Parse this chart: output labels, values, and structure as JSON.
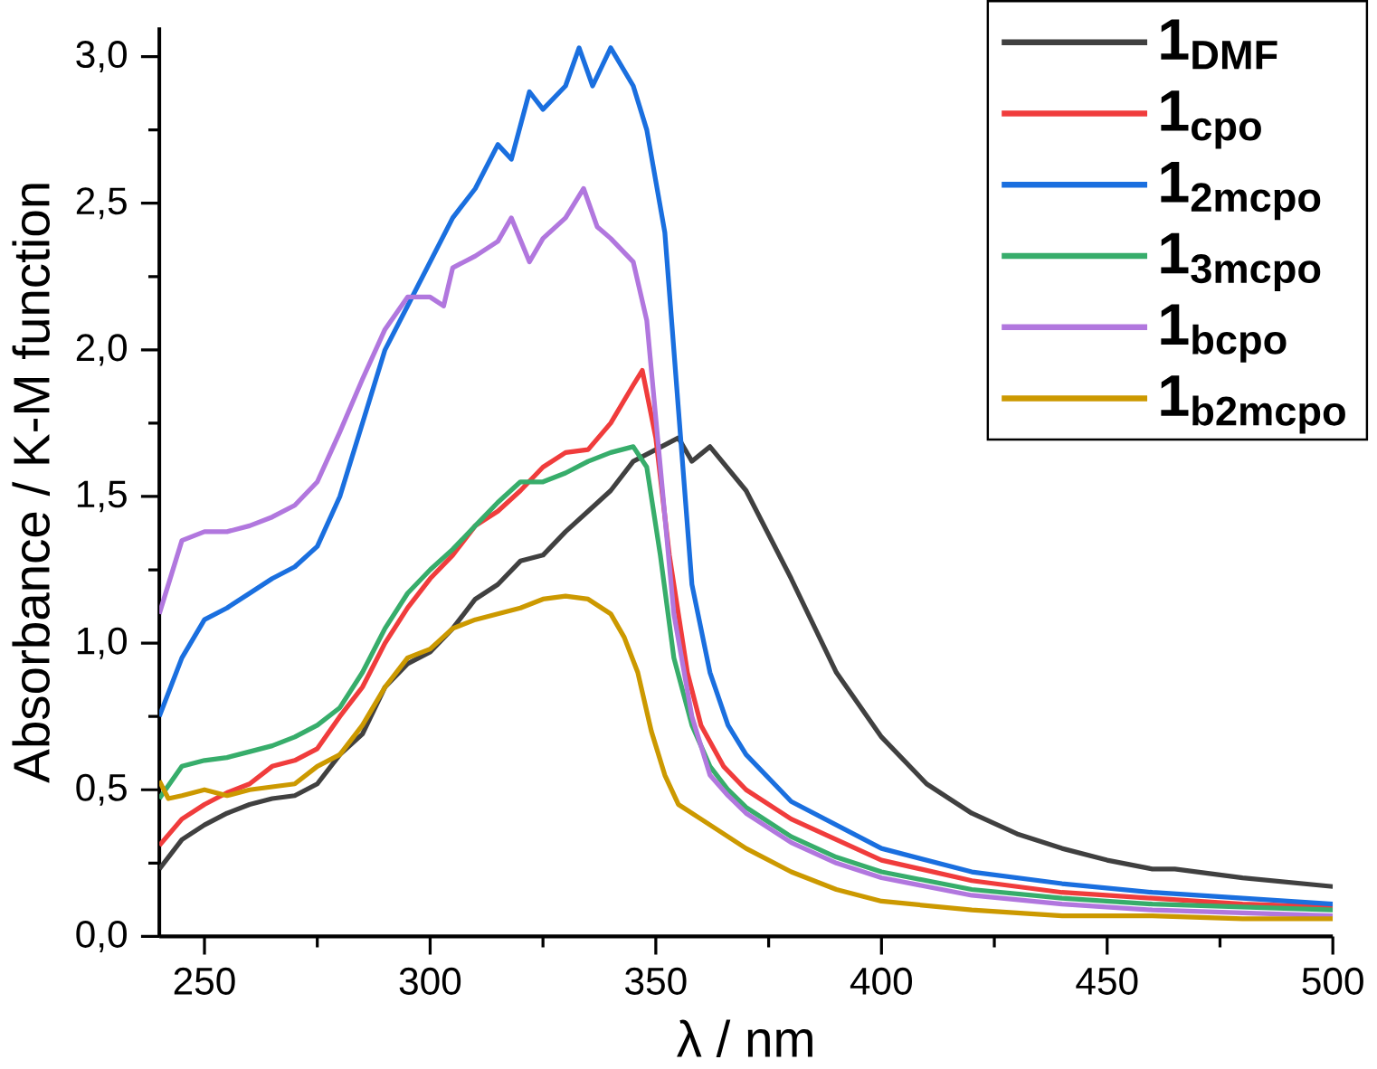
{
  "chart_data": {
    "type": "line",
    "xlabel": "λ / nm",
    "ylabel": "Absorbance / K-M function",
    "xlim": [
      240,
      500
    ],
    "xticks": [
      250,
      300,
      350,
      400,
      450,
      500
    ],
    "ylim": [
      0,
      3.1
    ],
    "yticks": [
      {
        "value": 0,
        "label": "0,0"
      },
      {
        "value": 0.5,
        "label": "0,5"
      },
      {
        "value": 1,
        "label": "1,0"
      },
      {
        "value": 1.5,
        "label": "1,5"
      },
      {
        "value": 2,
        "label": "2,0"
      },
      {
        "value": 2.5,
        "label": "2,5"
      },
      {
        "value": 3,
        "label": "3,0"
      }
    ],
    "grid": false,
    "legend": "top right",
    "line_style": "solid",
    "series": [
      {
        "name": "1$_{DMF}$",
        "color": "#404040",
        "x": [
          240,
          245,
          250,
          255,
          260,
          265,
          270,
          275,
          280,
          285,
          290,
          295,
          300,
          305,
          310,
          315,
          320,
          325,
          330,
          335,
          340,
          345,
          350,
          355,
          358,
          362,
          370,
          380,
          390,
          400,
          410,
          420,
          430,
          440,
          450,
          460,
          465,
          480,
          500
        ],
        "values": [
          0.23,
          0.33,
          0.38,
          0.42,
          0.45,
          0.47,
          0.48,
          0.52,
          0.62,
          0.69,
          0.85,
          0.93,
          0.97,
          1.05,
          1.15,
          1.2,
          1.28,
          1.3,
          1.38,
          1.45,
          1.52,
          1.62,
          1.66,
          1.7,
          1.62,
          1.67,
          1.52,
          1.22,
          0.9,
          0.68,
          0.52,
          0.42,
          0.35,
          0.3,
          0.26,
          0.23,
          0.23,
          0.2,
          0.17
        ]
      },
      {
        "name": "1$_{cpo}$",
        "color": "#f03c3c",
        "x": [
          240,
          245,
          250,
          255,
          260,
          265,
          270,
          275,
          280,
          285,
          290,
          295,
          300,
          305,
          310,
          315,
          320,
          325,
          330,
          335,
          340,
          345,
          347,
          350,
          353,
          357,
          360,
          365,
          370,
          380,
          390,
          400,
          420,
          440,
          460,
          480,
          500
        ],
        "values": [
          0.31,
          0.4,
          0.45,
          0.49,
          0.52,
          0.58,
          0.6,
          0.64,
          0.75,
          0.85,
          1.0,
          1.12,
          1.22,
          1.3,
          1.4,
          1.45,
          1.52,
          1.6,
          1.65,
          1.66,
          1.75,
          1.88,
          1.93,
          1.7,
          1.3,
          0.9,
          0.72,
          0.58,
          0.5,
          0.4,
          0.33,
          0.26,
          0.19,
          0.15,
          0.13,
          0.11,
          0.1
        ]
      },
      {
        "name": "1$_{2mcpo}$",
        "color": "#1a6fdf",
        "x": [
          240,
          245,
          250,
          255,
          260,
          265,
          270,
          275,
          280,
          285,
          290,
          295,
          300,
          305,
          310,
          315,
          318,
          322,
          325,
          330,
          333,
          336,
          340,
          345,
          348,
          352,
          355,
          358,
          362,
          366,
          370,
          380,
          390,
          400,
          420,
          440,
          460,
          480,
          500
        ],
        "values": [
          0.75,
          0.95,
          1.08,
          1.12,
          1.17,
          1.22,
          1.26,
          1.33,
          1.5,
          1.75,
          2.0,
          2.15,
          2.3,
          2.45,
          2.55,
          2.7,
          2.65,
          2.88,
          2.82,
          2.9,
          3.03,
          2.9,
          3.03,
          2.9,
          2.75,
          2.4,
          1.8,
          1.2,
          0.9,
          0.72,
          0.62,
          0.46,
          0.38,
          0.3,
          0.22,
          0.18,
          0.15,
          0.13,
          0.11
        ]
      },
      {
        "name": "1$_{3mcpo}$",
        "color": "#37ad6b",
        "x": [
          240,
          245,
          250,
          255,
          260,
          265,
          270,
          275,
          280,
          285,
          290,
          295,
          300,
          305,
          310,
          315,
          320,
          325,
          330,
          335,
          340,
          345,
          348,
          351,
          354,
          358,
          362,
          366,
          370,
          380,
          390,
          400,
          420,
          440,
          460,
          480,
          500
        ],
        "values": [
          0.47,
          0.58,
          0.6,
          0.61,
          0.63,
          0.65,
          0.68,
          0.72,
          0.78,
          0.9,
          1.05,
          1.17,
          1.25,
          1.32,
          1.4,
          1.48,
          1.55,
          1.55,
          1.58,
          1.62,
          1.65,
          1.67,
          1.6,
          1.3,
          0.95,
          0.72,
          0.58,
          0.5,
          0.44,
          0.34,
          0.27,
          0.22,
          0.16,
          0.13,
          0.11,
          0.1,
          0.09
        ]
      },
      {
        "name": "1$_{bcpo}$",
        "color": "#b177de",
        "x": [
          240,
          245,
          250,
          255,
          260,
          265,
          270,
          275,
          280,
          285,
          290,
          295,
          300,
          303,
          305,
          310,
          315,
          318,
          322,
          325,
          330,
          334,
          337,
          340,
          345,
          348,
          351,
          354,
          358,
          362,
          366,
          370,
          380,
          390,
          400,
          420,
          440,
          460,
          480,
          500
        ],
        "values": [
          1.1,
          1.35,
          1.38,
          1.38,
          1.4,
          1.43,
          1.47,
          1.55,
          1.72,
          1.9,
          2.07,
          2.18,
          2.18,
          2.15,
          2.28,
          2.32,
          2.37,
          2.45,
          2.3,
          2.38,
          2.45,
          2.55,
          2.42,
          2.38,
          2.3,
          2.1,
          1.6,
          1.1,
          0.75,
          0.55,
          0.48,
          0.42,
          0.32,
          0.25,
          0.2,
          0.14,
          0.11,
          0.09,
          0.08,
          0.07
        ]
      },
      {
        "name": "1$_{b2mcpo}$",
        "color": "#cc9900",
        "x": [
          240,
          242,
          245,
          250,
          255,
          260,
          265,
          270,
          275,
          280,
          285,
          290,
          295,
          300,
          305,
          310,
          315,
          320,
          325,
          330,
          335,
          340,
          343,
          346,
          349,
          352,
          355,
          360,
          370,
          380,
          390,
          400,
          420,
          440,
          460,
          480,
          500
        ],
        "values": [
          0.53,
          0.47,
          0.48,
          0.5,
          0.48,
          0.5,
          0.51,
          0.52,
          0.58,
          0.62,
          0.72,
          0.85,
          0.95,
          0.98,
          1.05,
          1.08,
          1.1,
          1.12,
          1.15,
          1.16,
          1.15,
          1.1,
          1.02,
          0.9,
          0.7,
          0.55,
          0.45,
          0.4,
          0.3,
          0.22,
          0.16,
          0.12,
          0.09,
          0.07,
          0.07,
          0.06,
          0.06
        ]
      }
    ]
  }
}
